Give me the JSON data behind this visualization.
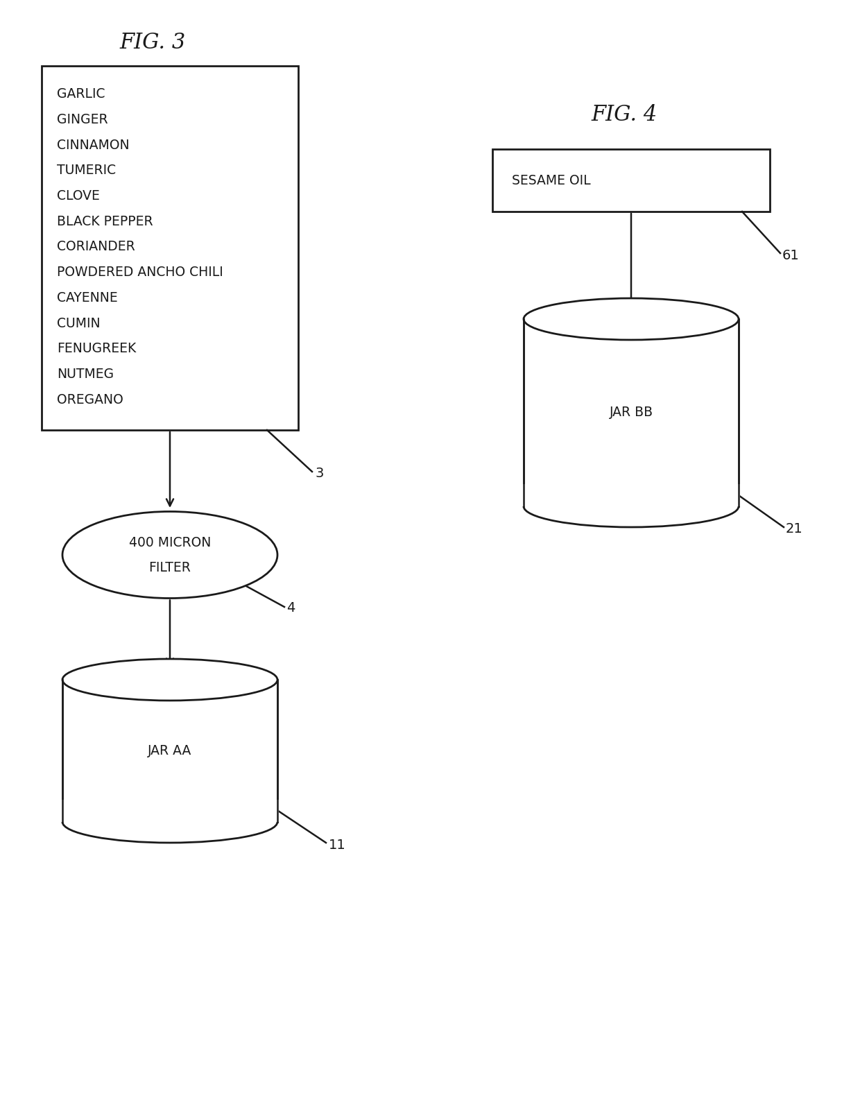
{
  "bg_color": "#ffffff",
  "fig3_title": "FIG. 3",
  "fig4_title": "FIG. 4",
  "spice_list": [
    "GARLIC",
    "GINGER",
    "CINNAMON",
    "TUMERIC",
    "CLOVE",
    "BLACK PEPPER",
    "CORIANDER",
    "POWDERED ANCHO CHILI",
    "CAYENNE",
    "CUMIN",
    "FENUGREEK",
    "NUTMEG",
    "OREGANO"
  ],
  "box3_label": "3",
  "filter_line1": "400 MICRON",
  "filter_line2": "FILTER",
  "filter_ref": "4",
  "jar_aa_label": "JAR AA",
  "jar_aa_ref": "11",
  "sesame_oil_label": "SESAME OIL",
  "sesame_oil_ref": "61",
  "jar_bb_label": "JAR BB",
  "jar_bb_ref": "21",
  "line_color": "#1a1a1a",
  "text_color": "#1a1a1a",
  "font_size_title": 22,
  "font_size_items": 13.5,
  "font_size_labels": 13.5,
  "font_size_refs": 13
}
